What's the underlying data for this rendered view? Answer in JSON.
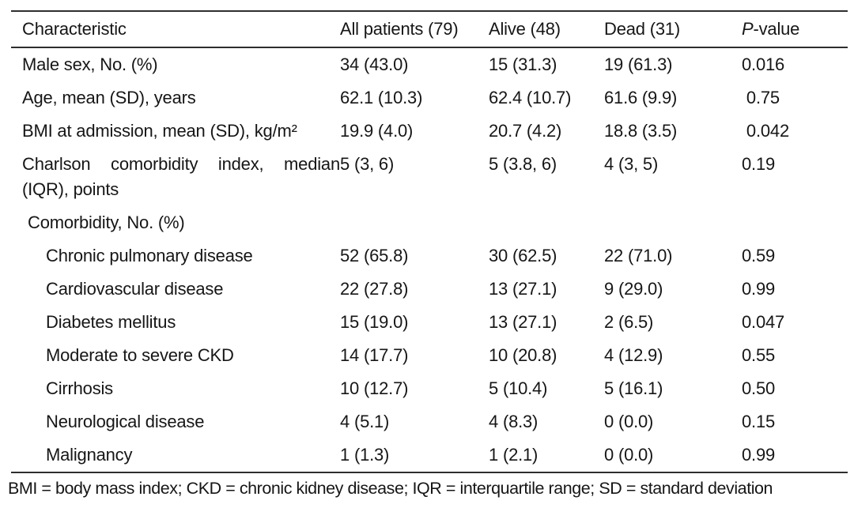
{
  "table": {
    "header": {
      "characteristic": "Characteristic",
      "all_patients": "All patients (79)",
      "alive": "Alive (48)",
      "dead": "Dead (31)",
      "pvalue_italic": "P",
      "pvalue_rest": "-value"
    },
    "rows": [
      {
        "label": "Male sex, No. (%)",
        "indent": "none",
        "justify": false,
        "values": [
          "34 (43.0)",
          "15 (31.3)",
          "19 (61.3)",
          "0.016"
        ]
      },
      {
        "label": "Age, mean (SD), years",
        "indent": "none",
        "justify": false,
        "values": [
          "62.1 (10.3)",
          "62.4 (10.7)",
          "61.6 (9.9)",
          " 0.75"
        ]
      },
      {
        "label": "BMI at admission, mean (SD), kg/m²",
        "indent": "none",
        "justify": false,
        "values": [
          "19.9 (4.0)",
          "20.7 (4.2)",
          "18.8 (3.5)",
          " 0.042"
        ]
      },
      {
        "label": "Charlson comorbidity index, median (IQR), points",
        "indent": "none",
        "justify": true,
        "values": [
          "5 (3, 6)",
          "5 (3.8, 6)",
          "4 (3, 5)",
          "0.19"
        ]
      },
      {
        "label": "Comorbidity, No. (%)",
        "indent": "group",
        "justify": false,
        "values": [
          "",
          "",
          "",
          ""
        ]
      },
      {
        "label": "Chronic pulmonary disease",
        "indent": "sub",
        "justify": false,
        "values": [
          "52 (65.8)",
          "30 (62.5)",
          "22 (71.0)",
          "0.59"
        ]
      },
      {
        "label": "Cardiovascular disease",
        "indent": "sub",
        "justify": false,
        "values": [
          "22 (27.8)",
          "13 (27.1)",
          "9 (29.0)",
          "0.99"
        ]
      },
      {
        "label": "Diabetes mellitus",
        "indent": "sub",
        "justify": false,
        "values": [
          "15 (19.0)",
          "13 (27.1)",
          "2 (6.5)",
          "0.047"
        ]
      },
      {
        "label": "Moderate to severe CKD",
        "indent": "sub",
        "justify": false,
        "values": [
          "14 (17.7)",
          "10 (20.8)",
          "4 (12.9)",
          "0.55"
        ]
      },
      {
        "label": "Cirrhosis",
        "indent": "sub",
        "justify": false,
        "values": [
          "10 (12.7)",
          "5 (10.4)",
          "5 (16.1)",
          "0.50"
        ]
      },
      {
        "label": "Neurological disease",
        "indent": "sub",
        "justify": false,
        "values": [
          "4 (5.1)",
          "4 (8.3)",
          "0 (0.0)",
          "0.15"
        ]
      },
      {
        "label": "Malignancy",
        "indent": "sub",
        "justify": false,
        "values": [
          "1 (1.3)",
          "1 (2.1)",
          "0 (0.0)",
          "0.99"
        ]
      }
    ],
    "footnote": "BMI = body mass index; CKD = chronic kidney disease; IQR = interquartile range; SD = standard deviation"
  }
}
